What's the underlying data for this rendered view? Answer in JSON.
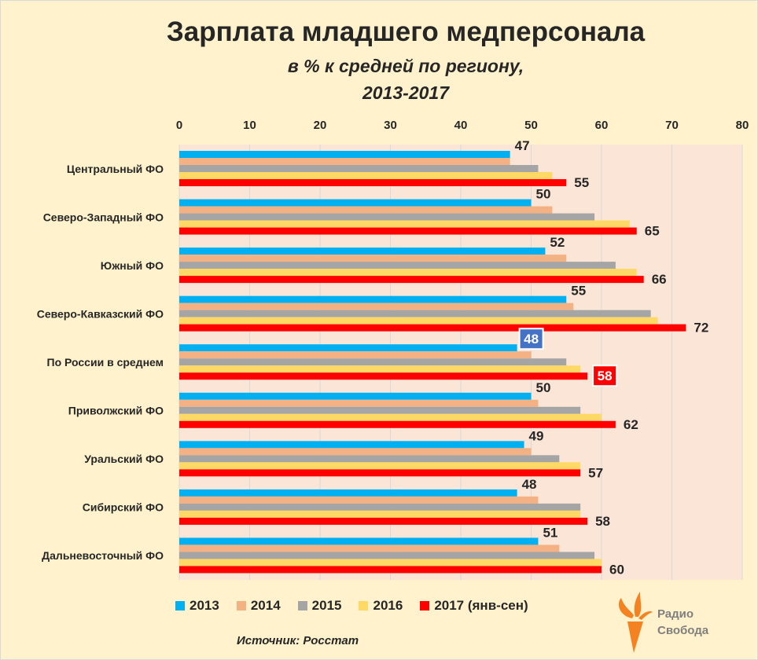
{
  "chart_data": {
    "type": "bar",
    "orientation": "horizontal",
    "title": "Зарплата младшего медперсонала",
    "subtitle": [
      "в % к средней по региону,",
      "2013-2017"
    ],
    "categories": [
      "Центральный ФО",
      "Северо-Западный  ФО",
      "Южный ФО",
      "Северо-Кавказский  ФО",
      "По России в среднем",
      "Приволжский ФО",
      "Уральский  ФО",
      "Сибирский ФО",
      "Дальневосточный  ФО"
    ],
    "series": [
      {
        "name": "2013",
        "color": "#00B0F0",
        "values": [
          47,
          50,
          52,
          55,
          48,
          50,
          49,
          48,
          51
        ]
      },
      {
        "name": "2014",
        "color": "#F4B183",
        "values": [
          47,
          53,
          55,
          56,
          50,
          51,
          50,
          51,
          54
        ]
      },
      {
        "name": "2015",
        "color": "#A5A5A5",
        "values": [
          51,
          59,
          62,
          67,
          55,
          57,
          54,
          57,
          59
        ]
      },
      {
        "name": "2016",
        "color": "#FFD966",
        "values": [
          53,
          64,
          65,
          68,
          57,
          60,
          57,
          57,
          60
        ]
      },
      {
        "name": "2017 (янв-сен)",
        "color": "#FF0000",
        "values": [
          55,
          65,
          66,
          72,
          58,
          62,
          57,
          58,
          60
        ]
      }
    ],
    "data_labels": {
      "2013": [
        "47",
        "50",
        "52",
        "55",
        "48",
        "50",
        "49",
        "48",
        "51"
      ],
      "2017 (янв-сен)": [
        "55",
        "65",
        "66",
        "72",
        "58",
        "62",
        "57",
        "58",
        "60"
      ]
    },
    "highlight_label_colors": {
      "2013": "#4472C4",
      "2017": "#FF0000"
    },
    "xlim": [
      0,
      80
    ],
    "xticks": [
      "0",
      "10",
      "20",
      "30",
      "40",
      "50",
      "60",
      "70",
      "80"
    ],
    "grid": true,
    "legend_position": "bottom"
  },
  "source": "Источник:  Росстат",
  "logo": {
    "line1": "Радио",
    "line2": "Свобода"
  }
}
